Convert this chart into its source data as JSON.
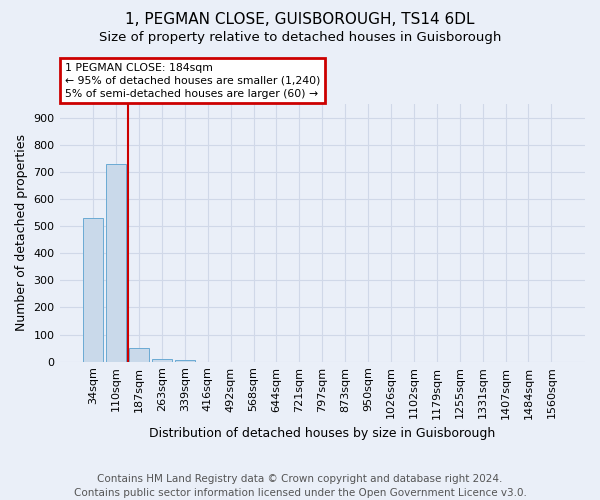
{
  "title1": "1, PEGMAN CLOSE, GUISBOROUGH, TS14 6DL",
  "title2": "Size of property relative to detached houses in Guisborough",
  "xlabel": "Distribution of detached houses by size in Guisborough",
  "ylabel": "Number of detached properties",
  "footnote": "Contains HM Land Registry data © Crown copyright and database right 2024.\nContains public sector information licensed under the Open Government Licence v3.0.",
  "bar_labels": [
    "34sqm",
    "110sqm",
    "187sqm",
    "263sqm",
    "339sqm",
    "416sqm",
    "492sqm",
    "568sqm",
    "644sqm",
    "721sqm",
    "797sqm",
    "873sqm",
    "950sqm",
    "1026sqm",
    "1102sqm",
    "1179sqm",
    "1255sqm",
    "1331sqm",
    "1407sqm",
    "1484sqm",
    "1560sqm"
  ],
  "bar_values": [
    530,
    728,
    50,
    10,
    8,
    0,
    0,
    0,
    0,
    0,
    0,
    0,
    0,
    0,
    0,
    0,
    0,
    0,
    0,
    0,
    0
  ],
  "bar_color": "#c9d9ea",
  "bar_edge_color": "#6aaad4",
  "vline_color": "#cc0000",
  "vline_x": 1.5,
  "annotation_text": "1 PEGMAN CLOSE: 184sqm\n← 95% of detached houses are smaller (1,240)\n5% of semi-detached houses are larger (60) →",
  "annotation_box_color": "#cc0000",
  "annotation_text_color": "black",
  "ylim": [
    0,
    950
  ],
  "yticks": [
    0,
    100,
    200,
    300,
    400,
    500,
    600,
    700,
    800,
    900
  ],
  "bg_color": "#eaeff8",
  "plot_bg_color": "#eaeff8",
  "grid_color": "#d0d8e8",
  "title1_fontsize": 11,
  "title2_fontsize": 9.5,
  "xlabel_fontsize": 9,
  "ylabel_fontsize": 9,
  "tick_fontsize": 8,
  "footnote_fontsize": 7.5
}
